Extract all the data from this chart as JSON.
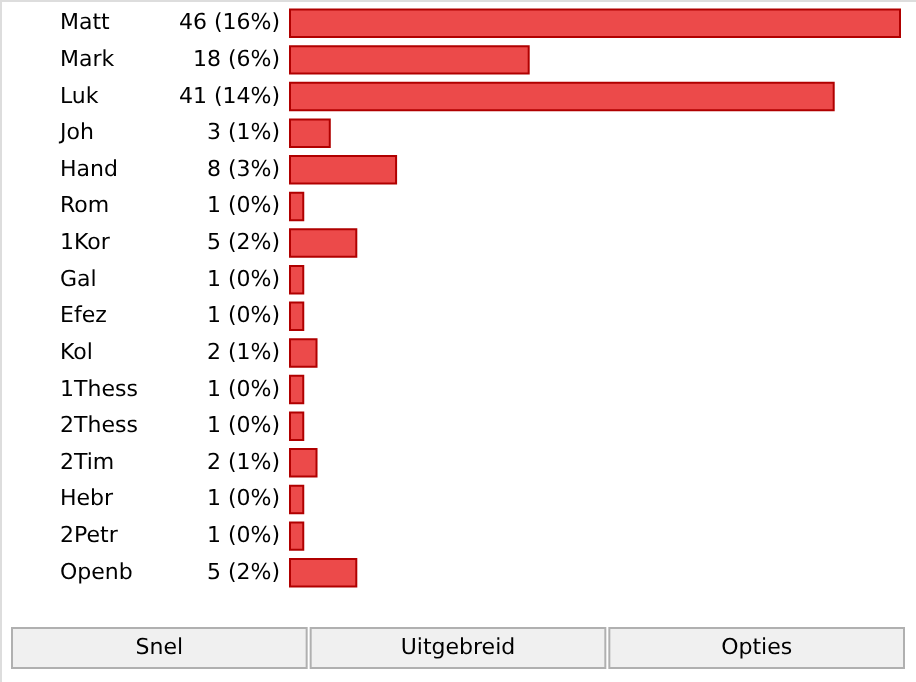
{
  "chart_data": {
    "type": "bar",
    "orientation": "horizontal",
    "categories": [
      "Matt",
      "Mark",
      "Luk",
      "Joh",
      "Hand",
      "Rom",
      "1Kor",
      "Gal",
      "Efez",
      "Kol",
      "1Thess",
      "2Thess",
      "2Tim",
      "Hebr",
      "2Petr",
      "Openb"
    ],
    "values": [
      46,
      18,
      41,
      3,
      8,
      1,
      5,
      1,
      1,
      2,
      1,
      1,
      2,
      1,
      1,
      5
    ],
    "value_labels": [
      "46 (16%)",
      "18 (6%)",
      "41 (14%)",
      "3 (1%)",
      "8 (3%)",
      "1 (0%)",
      "5 (2%)",
      "1 (0%)",
      "1 (0%)",
      "2 (1%)",
      "1 (0%)",
      "1 (0%)",
      "2 (1%)",
      "1 (0%)",
      "1 (0%)",
      "5 (2%)"
    ],
    "color": "#ec4a4a",
    "annotations": [
      "Snel",
      "Uitgebreid",
      "Opties"
    ]
  }
}
